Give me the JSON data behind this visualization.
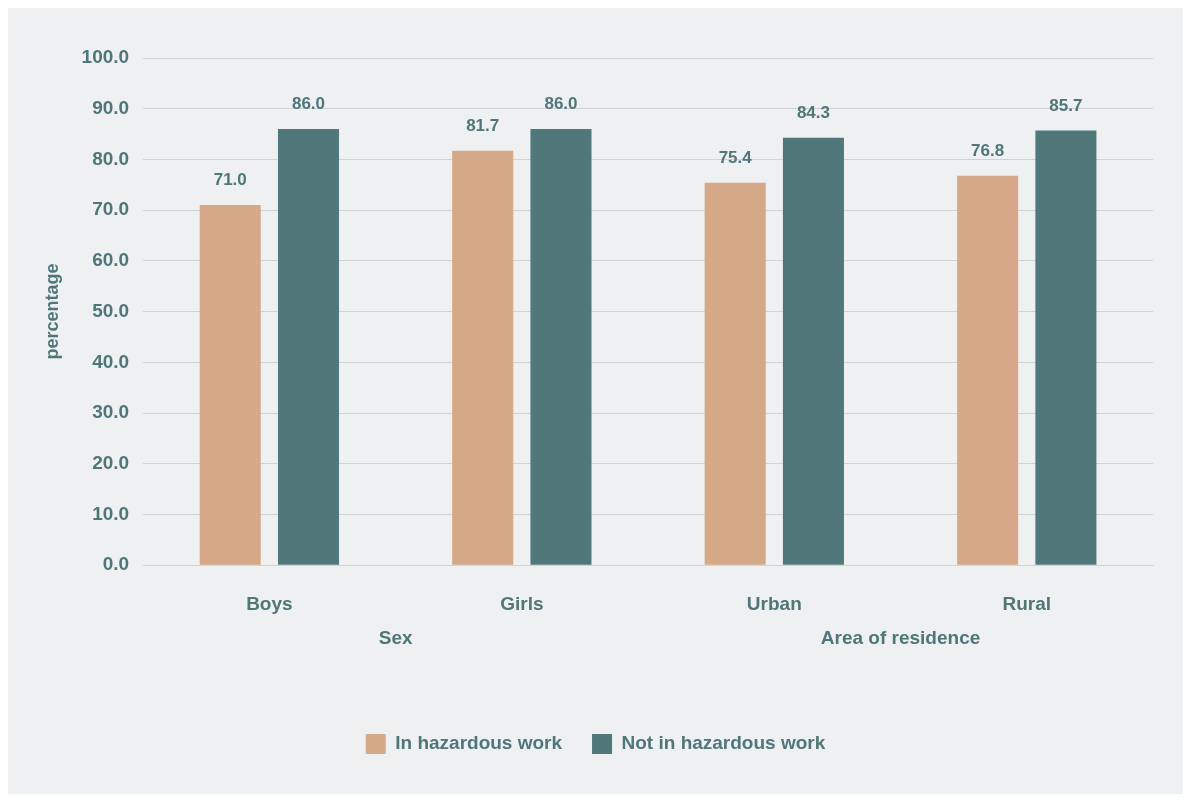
{
  "chart_data": {
    "type": "bar",
    "categories": [
      "Boys",
      "Girls",
      "Urban",
      "Rural"
    ],
    "series": [
      {
        "name": "In hazardous work",
        "color": "#d5a987",
        "values": [
          71.0,
          81.7,
          75.4,
          76.8
        ],
        "value_labels": [
          "71.0",
          "81.7",
          "75.4",
          "76.8"
        ]
      },
      {
        "name": "Not in hazardous work",
        "color": "#50787a",
        "values": [
          86.0,
          86.0,
          84.3,
          85.7
        ],
        "value_labels": [
          "86.0",
          "86.0",
          "84.3",
          "85.7"
        ]
      }
    ],
    "ylabel": "percentage",
    "ylim": [
      0,
      100
    ],
    "yticks": [
      {
        "value": 0,
        "label": "0.0"
      },
      {
        "value": 10,
        "label": "10.0"
      },
      {
        "value": 20,
        "label": "20.0"
      },
      {
        "value": 30,
        "label": "30.0"
      },
      {
        "value": 40,
        "label": "40.0"
      },
      {
        "value": 50,
        "label": "50.0"
      },
      {
        "value": 60,
        "label": "60.0"
      },
      {
        "value": 70,
        "label": "70.0"
      },
      {
        "value": 80,
        "label": "80.0"
      },
      {
        "value": 90,
        "label": "90.0"
      },
      {
        "value": 100,
        "label": "100.0"
      }
    ],
    "annotations": [
      "Sex",
      "Area of residence"
    ],
    "grid": "y",
    "legend": "bottom"
  }
}
